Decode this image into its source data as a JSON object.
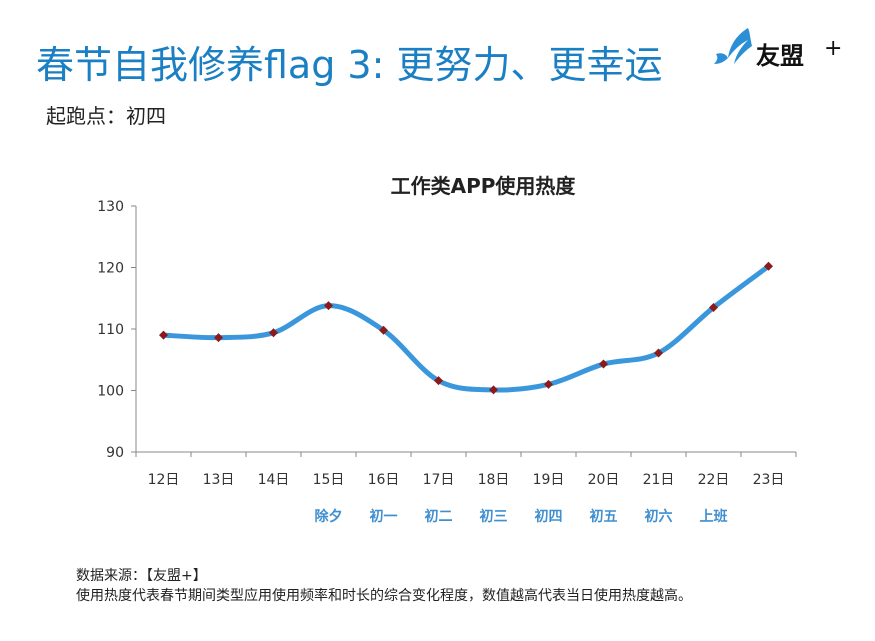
{
  "header": {
    "title": "春节自我修养flag 3: 更努力、更幸运",
    "subtitle": "起跑点：初四",
    "brand_name": "友盟",
    "brand_plus": "+"
  },
  "footer": {
    "source": "数据来源：【友盟+】",
    "note": "使用热度代表春节期间类型应用使用频率和时长的综合变化程度，数值越高代表当日使用热度越高。"
  },
  "colors": {
    "title": "#1b7fc4",
    "line": "#3b97dc",
    "marker": "#8b1a1a",
    "holiday_label": "#3f8fd0"
  },
  "chart_data": {
    "type": "line",
    "title": "工作类APP使用热度",
    "xlabel": "",
    "ylabel": "",
    "categories": [
      "12日",
      "13日",
      "14日",
      "15日",
      "16日",
      "17日",
      "18日",
      "19日",
      "20日",
      "21日",
      "22日",
      "23日"
    ],
    "holiday_labels": [
      "",
      "",
      "",
      "除夕",
      "初一",
      "初二",
      "初三",
      "初四",
      "初五",
      "初六",
      "上班",
      ""
    ],
    "series": [
      {
        "values": [
          109,
          108.6,
          109.4,
          113.8,
          109.8,
          101.6,
          100.1,
          101,
          104.3,
          106.1,
          113.5,
          120.2
        ]
      }
    ],
    "ylim": [
      90,
      130
    ],
    "yticks": [
      90,
      100,
      110,
      120,
      130
    ],
    "grid": false,
    "legend": "none"
  }
}
